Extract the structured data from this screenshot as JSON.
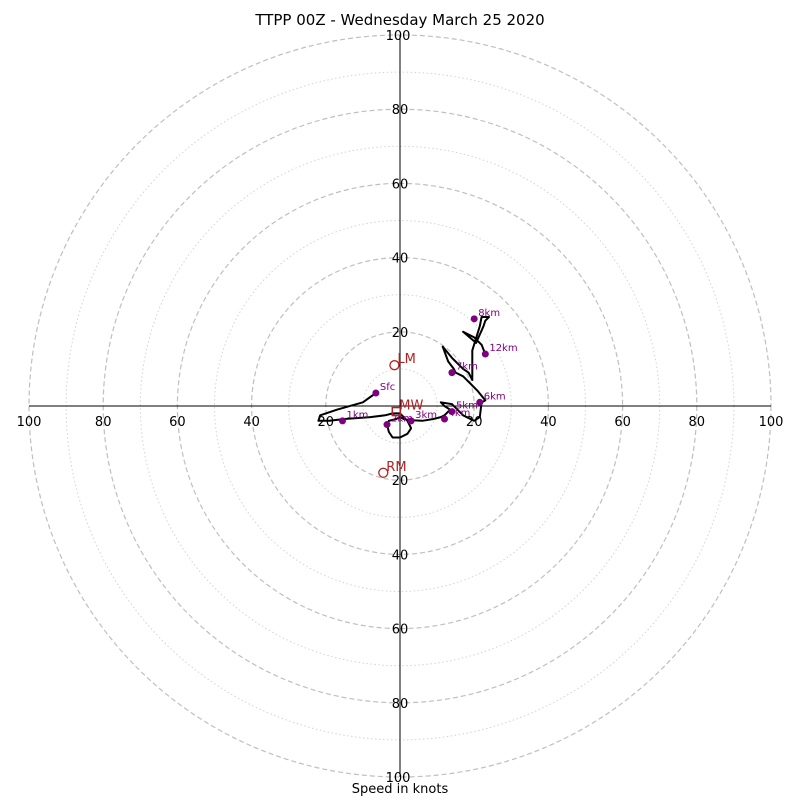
{
  "chart_data": {
    "type": "line",
    "title": "TTPP 00Z - Wednesday March 25 2020",
    "xlabel": "Speed in knots",
    "ylabel": "",
    "rings": {
      "dashed": [
        20,
        40,
        60,
        80,
        100
      ],
      "dotted": [
        10,
        30,
        50,
        70,
        90
      ],
      "max": 100
    },
    "tick_labels": [
      20,
      40,
      60,
      80,
      100
    ],
    "colors": {
      "hodograph": "#000000",
      "height_markers": "#800080",
      "storm_motion": "#b22222",
      "grid": "#bfbfbf"
    },
    "hodograph": {
      "u": [
        -6.5,
        -10,
        -17,
        -21.5,
        -22,
        -19,
        -15,
        -8,
        -4,
        -2,
        0,
        1,
        2,
        2.5,
        3,
        2,
        0,
        -2,
        -3,
        -3.5,
        -3,
        -1,
        0,
        1,
        2.5,
        6,
        9,
        11,
        12,
        13.5,
        12,
        11,
        14,
        17,
        20,
        21.5,
        22,
        23,
        21,
        19,
        17,
        15,
        14.5,
        13,
        11.5,
        14,
        15,
        17,
        18.5,
        19.5,
        19.5,
        21.5,
        22,
        24,
        23,
        22.5,
        20.5,
        17,
        20,
        22,
        23
      ],
      "v": [
        3.5,
        1,
        -1,
        -2.5,
        -4,
        -4,
        -3.5,
        -3,
        -2.5,
        -2,
        -2,
        -3,
        -4,
        -5,
        -6,
        -7.5,
        -8.5,
        -8.5,
        -7,
        -5,
        -4,
        -3.5,
        -3,
        -3.5,
        -3.8,
        -4,
        -3.5,
        -3,
        -2.5,
        -1,
        0,
        1,
        0.5,
        -2.5,
        -4,
        -3,
        1,
        1.5,
        4,
        6,
        8,
        9,
        10,
        12,
        16,
        13,
        12,
        10,
        9,
        7,
        15,
        21.5,
        24,
        24,
        23,
        21.5,
        17,
        20,
        18.5,
        16.5,
        14
      ]
    },
    "height_markers": [
      {
        "label": "Sfc",
        "u": -6.5,
        "v": 3.5
      },
      {
        "label": "1km",
        "u": -15.5,
        "v": -4
      },
      {
        "label": "2km",
        "u": -3.5,
        "v": -5
      },
      {
        "label": "3km",
        "u": 3,
        "v": -4
      },
      {
        "label": "4km",
        "u": 12,
        "v": -3.5
      },
      {
        "label": "5km",
        "u": 14,
        "v": -1.5
      },
      {
        "label": "6km",
        "u": 21.5,
        "v": 1
      },
      {
        "label": "7km",
        "u": 14,
        "v": 9
      },
      {
        "label": "8km",
        "u": 20,
        "v": 23.5
      },
      {
        "label": "12km",
        "u": 23,
        "v": 14
      }
    ],
    "storm_motion": [
      {
        "label": "LM",
        "u": -1.5,
        "v": 11
      },
      {
        "label": "RM",
        "u": -4.5,
        "v": -18
      },
      {
        "label": "MW",
        "u": -1,
        "v": -1.5
      }
    ]
  }
}
